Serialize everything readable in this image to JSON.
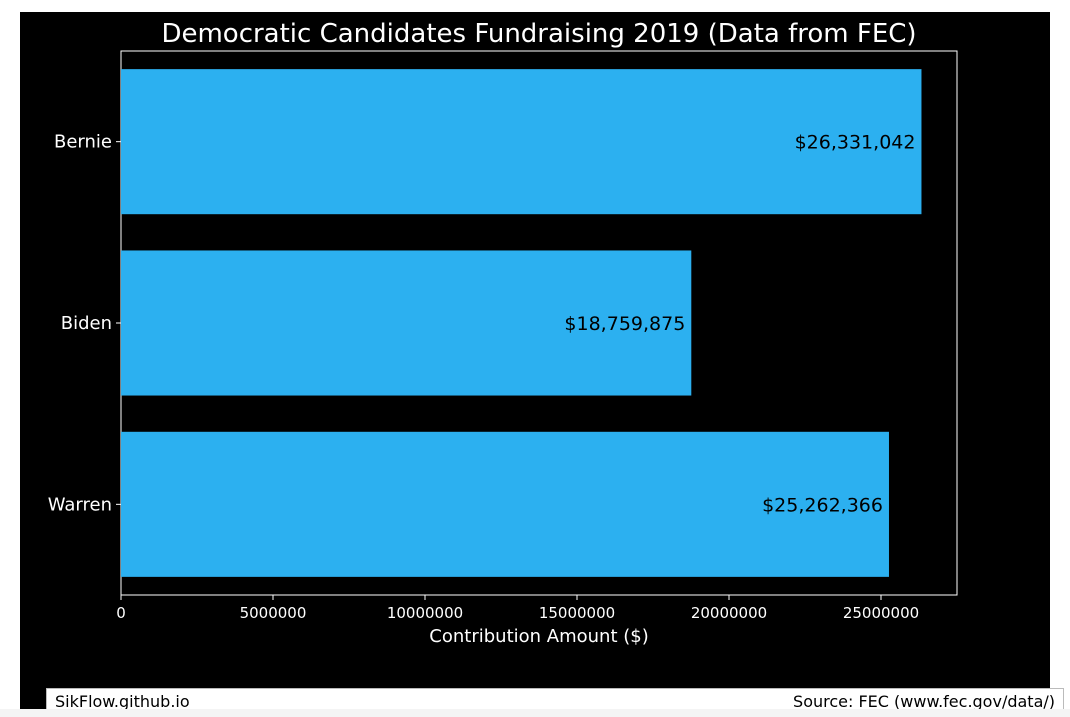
{
  "chart_data": {
    "type": "bar",
    "orientation": "horizontal",
    "title": "Democratic Candidates Fundraising 2019 (Data from FEC)",
    "xlabel": "Contribution Amount ($)",
    "ylabel": "",
    "categories": [
      "Bernie",
      "Biden",
      "Warren"
    ],
    "values": [
      26331042,
      18759875,
      25262366
    ],
    "data_labels": [
      "$26,331,042",
      "$18,759,875",
      "$25,262,366"
    ],
    "xlim": [
      0,
      27500000
    ],
    "xticks": [
      0,
      5000000,
      10000000,
      15000000,
      20000000,
      25000000
    ],
    "xtick_labels": [
      "0",
      "5000000",
      "10000000",
      "15000000",
      "20000000",
      "25000000"
    ],
    "bar_color": "#2cb0f0",
    "background": "#000000",
    "grid": false
  },
  "footer": {
    "credit": "SikFlow.github.io",
    "source": "Source: FEC (www.fec.gov/data/)"
  }
}
